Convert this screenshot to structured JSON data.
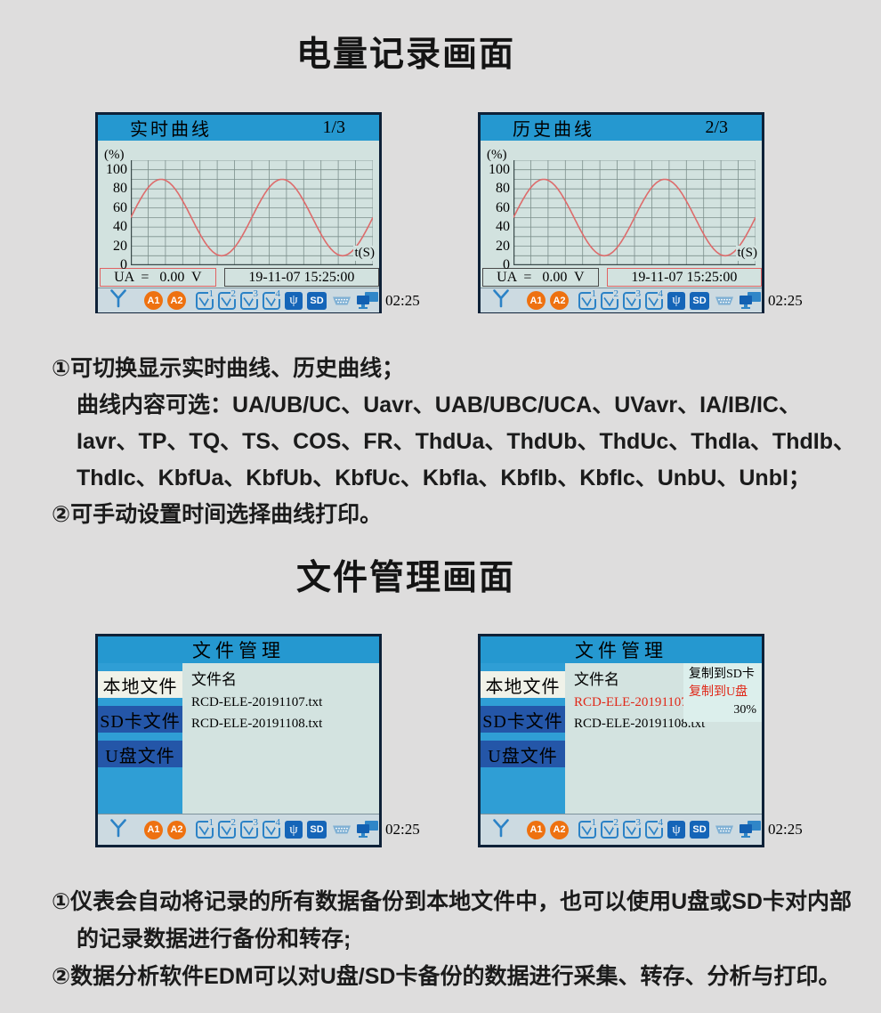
{
  "titles": {
    "power_section": "电量记录画面",
    "file_section": "文件管理画面"
  },
  "power_screens": {
    "realtime": {
      "title": "实时曲线",
      "page_indicator": "1/3",
      "readout": "UA  =   0.00  V",
      "timestamp": "19-11-07 15:25:00"
    },
    "history": {
      "title": "历史曲线",
      "page_indicator": "2/3",
      "readout": "UA  =   0.00  V",
      "timestamp": "19-11-07 15:25:00"
    }
  },
  "chart_data": [
    {
      "type": "line",
      "title": "实时曲线",
      "page": "1/3",
      "ylabel": "(%)",
      "xlabel": "t(S)",
      "yticks": [
        0,
        20,
        40,
        60,
        80,
        100
      ],
      "ylim": [
        0,
        110
      ],
      "x_divisions": 14,
      "grid": true,
      "series": [
        {
          "name": "UA",
          "waveform": "sine",
          "mean": 50,
          "amplitude": 40,
          "periods": 2,
          "color": "#dd6b6b"
        }
      ],
      "readout": "UA  =   0.00  V",
      "timestamp": "19-11-07 15:25:00"
    },
    {
      "type": "line",
      "title": "历史曲线",
      "page": "2/3",
      "ylabel": "(%)",
      "xlabel": "t(S)",
      "yticks": [
        0,
        20,
        40,
        60,
        80,
        100
      ],
      "ylim": [
        0,
        110
      ],
      "x_divisions": 14,
      "grid": true,
      "series": [
        {
          "name": "UA",
          "waveform": "sine",
          "mean": 50,
          "amplitude": 40,
          "periods": 2,
          "color": "#dd6b6b"
        }
      ],
      "readout": "UA  =   0.00  V",
      "timestamp": "19-11-07 15:25:00"
    }
  ],
  "file_manager": {
    "title": "文件管理",
    "sidebar": [
      "本地文件",
      "SD卡文件",
      "U盘文件"
    ],
    "column_header": "文件名",
    "files": [
      "RCD-ELE-20191107.txt",
      "RCD-ELE-20191108.txt"
    ],
    "popup": {
      "copy_sd": "复制到SD卡",
      "copy_usb": "复制到U盘",
      "progress": "30%"
    }
  },
  "statusbar": {
    "a1": "A1",
    "a2": "A2",
    "meters": [
      "1",
      "2",
      "3",
      "4"
    ],
    "usb": "ψ",
    "sd": "SD",
    "time": "02:25"
  },
  "notes_power": {
    "lines": [
      "①可切换显示实时曲线、历史曲线；",
      "曲线内容可选：UA/UB/UC、Uavr、UAB/UBC/UCA、UVavr、IA/IB/IC、",
      "Iavr、TP、TQ、TS、COS、FR、ThdUa、ThdUb、ThdUc、ThdIa、ThdIb、",
      "ThdIc、KbfUa、KbfUb、KbfUc、KbfIa、KbfIb、KbfIc、UnbU、UnbI；",
      "②可手动设置时间选择曲线打印。"
    ]
  },
  "notes_file": {
    "lines": [
      "①仪表会自动将记录的所有数据备份到本地文件中，也可以使用U盘或SD卡对内部",
      "的记录数据进行备份和转存;",
      "②数据分析软件EDM可以对U盘/SD卡备份的数据进行采集、转存、分析与打印。"
    ]
  },
  "colors": {
    "header_blue": "#2598d0",
    "sidebar_blue": "#2f9ed5",
    "dark_button_blue": "#2456a8",
    "screen_bg": "#d2e2df",
    "status_bg": "#ccdae1",
    "border_navy": "#0e2138",
    "curve_red": "#dd6b6b",
    "accent_red": "#e02818",
    "badge_orange": "#ee7110",
    "icon_blue": "#2b82c6"
  }
}
